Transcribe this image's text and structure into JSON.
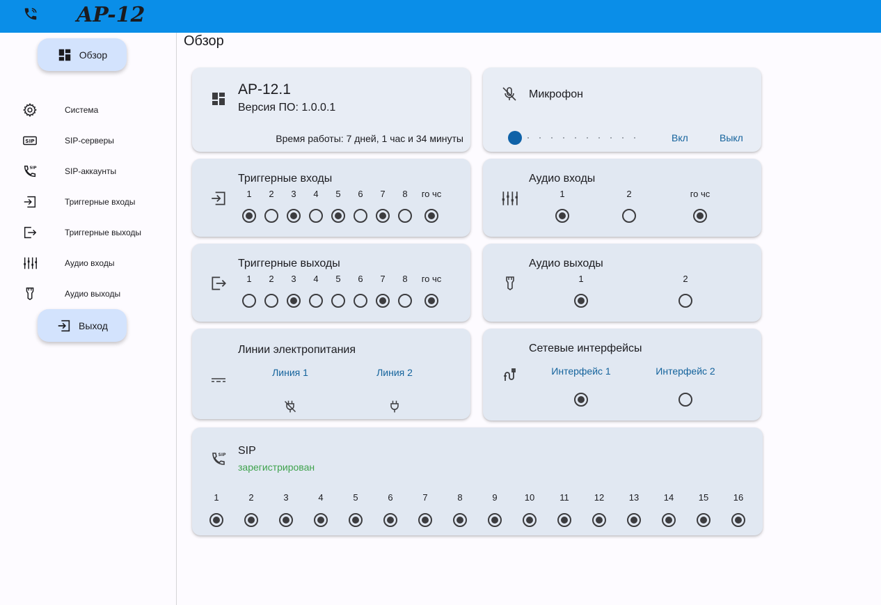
{
  "header": {
    "logo": "AP-12",
    "icon": "phone-wifi-icon"
  },
  "nav": {
    "overview_button": "Обзор",
    "items": [
      {
        "label": "Система",
        "icon": "gear-icon"
      },
      {
        "label": "SIP-серверы",
        "icon": "sip-icon"
      },
      {
        "label": "SIP-аккаунты",
        "icon": "phone-sip-icon"
      },
      {
        "label": "Триггерные входы",
        "icon": "login-icon"
      },
      {
        "label": "Триггерные выходы",
        "icon": "logout-icon"
      },
      {
        "label": "Аудио входы",
        "icon": "equalizer-icon"
      },
      {
        "label": "Аудио выходы",
        "icon": "speaker-icon"
      }
    ],
    "logout_button": "Выход"
  },
  "page_title": "Обзор",
  "device": {
    "name": "AP-12.1",
    "firmware": "Версия ПО: 1.0.0.1",
    "uptime": "Время работы: 7 дней, 1 час и 34 минуты"
  },
  "microphone": {
    "title": "Микрофон",
    "on_label": "Вкл",
    "off_label": "Выкл",
    "level": 0
  },
  "trigger_inputs": {
    "title": "Триггерные входы",
    "labels": [
      "1",
      "2",
      "3",
      "4",
      "5",
      "6",
      "7",
      "8",
      "го чс"
    ],
    "states": [
      true,
      false,
      true,
      false,
      true,
      false,
      true,
      false,
      true
    ]
  },
  "audio_inputs": {
    "title": "Аудио входы",
    "labels": [
      "1",
      "2",
      "го чс"
    ],
    "states": [
      true,
      false,
      true
    ]
  },
  "trigger_outputs": {
    "title": "Триггерные выходы",
    "labels": [
      "1",
      "2",
      "3",
      "4",
      "5",
      "6",
      "7",
      "8",
      "го чс"
    ],
    "states": [
      false,
      false,
      true,
      false,
      false,
      false,
      true,
      false,
      true
    ]
  },
  "audio_outputs": {
    "title": "Аудио выходы",
    "labels": [
      "1",
      "2"
    ],
    "states": [
      true,
      false
    ]
  },
  "power_lines": {
    "title": "Линии электропитания",
    "lines": [
      "Линия 1",
      "Линия 2"
    ],
    "line_icons": [
      "power-plug-off-icon",
      "power-plug-icon"
    ]
  },
  "network": {
    "title": "Сетевые интерфейсы",
    "interfaces": [
      "Интерфейс 1",
      "Интерфейс 2"
    ],
    "states": [
      true,
      false
    ]
  },
  "sip": {
    "title": "SIP",
    "status": "зарегистрирован",
    "status_color": "#3fa34d",
    "labels": [
      "1",
      "2",
      "3",
      "4",
      "5",
      "6",
      "7",
      "8",
      "9",
      "10",
      "11",
      "12",
      "13",
      "14",
      "15",
      "16"
    ],
    "states": [
      true,
      true,
      true,
      true,
      true,
      true,
      true,
      true,
      true,
      true,
      true,
      true,
      true,
      true,
      true,
      true
    ]
  }
}
